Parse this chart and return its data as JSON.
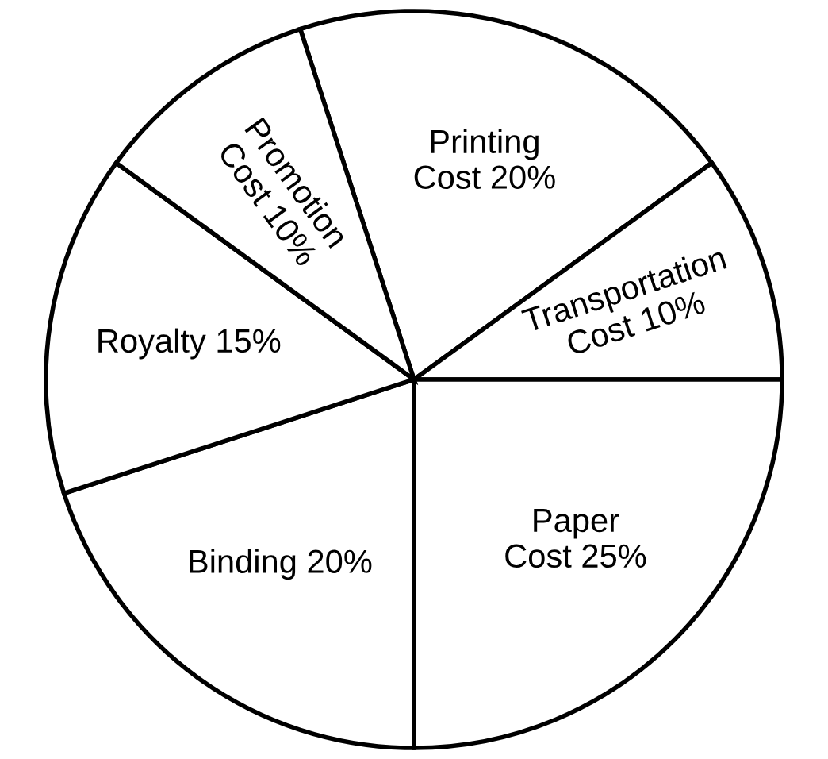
{
  "chart_data": {
    "type": "pie",
    "categories": [
      "Printing Cost",
      "Transportation Cost",
      "Paper Cost",
      "Binding",
      "Royalty",
      "Promotion Cost"
    ],
    "values": [
      20,
      10,
      25,
      20,
      15,
      10
    ],
    "value_labels": [
      "20%",
      "10%",
      "25%",
      "20%",
      "15%",
      "10%"
    ],
    "colors": [
      "#ffffff",
      "#ffffff",
      "#ffffff",
      "#ffffff",
      "#ffffff",
      "#ffffff"
    ],
    "legend": false
  }
}
